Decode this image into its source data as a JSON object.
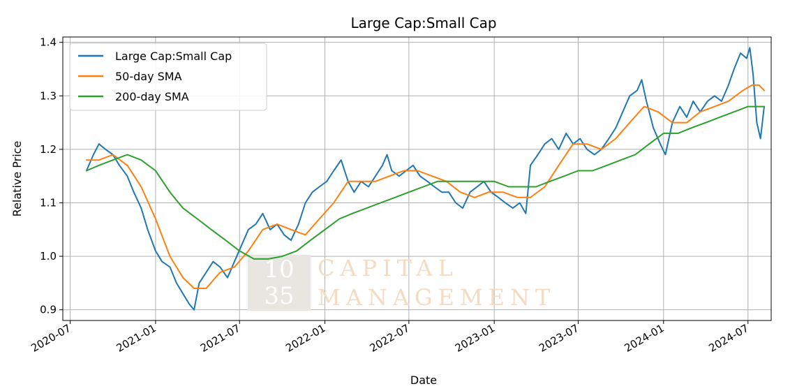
{
  "chart_data": {
    "type": "line",
    "title": "Large Cap:Small Cap",
    "xlabel": "Date",
    "ylabel": "Relative Price",
    "xlim": [
      "2020-06-15",
      "2024-08-20"
    ],
    "ylim": [
      0.88,
      1.41
    ],
    "x_ticks": [
      "2020-07",
      "2021-01",
      "2021-07",
      "2022-01",
      "2022-07",
      "2023-01",
      "2023-07",
      "2024-01",
      "2024-07"
    ],
    "y_ticks": [
      0.9,
      1.0,
      1.1,
      1.2,
      1.3,
      1.4
    ],
    "y_tick_labels": [
      "0.9",
      "1.0",
      "1.1",
      "1.2",
      "1.3",
      "1.4"
    ],
    "grid": true,
    "legend_position": "top-left",
    "series": [
      {
        "name": "Large Cap:Small Cap",
        "color": "#1f77b4",
        "points": [
          [
            "2020-08-05",
            1.16
          ],
          [
            "2020-08-20",
            1.19
          ],
          [
            "2020-09-01",
            1.21
          ],
          [
            "2020-09-15",
            1.2
          ],
          [
            "2020-10-01",
            1.19
          ],
          [
            "2020-10-15",
            1.17
          ],
          [
            "2020-11-01",
            1.15
          ],
          [
            "2020-11-15",
            1.12
          ],
          [
            "2020-12-01",
            1.09
          ],
          [
            "2020-12-15",
            1.05
          ],
          [
            "2021-01-01",
            1.01
          ],
          [
            "2021-01-15",
            0.99
          ],
          [
            "2021-02-01",
            0.98
          ],
          [
            "2021-02-15",
            0.95
          ],
          [
            "2021-03-01",
            0.93
          ],
          [
            "2021-03-15",
            0.91
          ],
          [
            "2021-03-25",
            0.9
          ],
          [
            "2021-04-05",
            0.95
          ],
          [
            "2021-04-20",
            0.97
          ],
          [
            "2021-05-05",
            0.99
          ],
          [
            "2021-05-20",
            0.98
          ],
          [
            "2021-06-05",
            0.96
          ],
          [
            "2021-06-20",
            0.99
          ],
          [
            "2021-07-05",
            1.02
          ],
          [
            "2021-07-20",
            1.05
          ],
          [
            "2021-08-05",
            1.06
          ],
          [
            "2021-08-20",
            1.08
          ],
          [
            "2021-09-05",
            1.05
          ],
          [
            "2021-09-20",
            1.06
          ],
          [
            "2021-10-05",
            1.04
          ],
          [
            "2021-10-20",
            1.03
          ],
          [
            "2021-11-05",
            1.06
          ],
          [
            "2021-11-20",
            1.1
          ],
          [
            "2021-12-05",
            1.12
          ],
          [
            "2021-12-20",
            1.13
          ],
          [
            "2022-01-05",
            1.14
          ],
          [
            "2022-01-20",
            1.16
          ],
          [
            "2022-02-05",
            1.18
          ],
          [
            "2022-02-20",
            1.14
          ],
          [
            "2022-03-05",
            1.12
          ],
          [
            "2022-03-20",
            1.14
          ],
          [
            "2022-04-05",
            1.13
          ],
          [
            "2022-04-20",
            1.15
          ],
          [
            "2022-05-05",
            1.17
          ],
          [
            "2022-05-15",
            1.19
          ],
          [
            "2022-05-25",
            1.16
          ],
          [
            "2022-06-10",
            1.15
          ],
          [
            "2022-06-25",
            1.16
          ],
          [
            "2022-07-10",
            1.17
          ],
          [
            "2022-07-25",
            1.15
          ],
          [
            "2022-08-10",
            1.14
          ],
          [
            "2022-08-25",
            1.13
          ],
          [
            "2022-09-10",
            1.12
          ],
          [
            "2022-09-25",
            1.12
          ],
          [
            "2022-10-10",
            1.1
          ],
          [
            "2022-10-25",
            1.09
          ],
          [
            "2022-11-10",
            1.12
          ],
          [
            "2022-11-25",
            1.13
          ],
          [
            "2022-12-10",
            1.14
          ],
          [
            "2022-12-25",
            1.12
          ],
          [
            "2023-01-10",
            1.11
          ],
          [
            "2023-01-25",
            1.1
          ],
          [
            "2023-02-10",
            1.09
          ],
          [
            "2023-02-25",
            1.1
          ],
          [
            "2023-03-10",
            1.08
          ],
          [
            "2023-03-20",
            1.17
          ],
          [
            "2023-04-05",
            1.19
          ],
          [
            "2023-04-20",
            1.21
          ],
          [
            "2023-05-05",
            1.22
          ],
          [
            "2023-05-20",
            1.2
          ],
          [
            "2023-06-05",
            1.23
          ],
          [
            "2023-06-20",
            1.21
          ],
          [
            "2023-07-05",
            1.22
          ],
          [
            "2023-07-20",
            1.2
          ],
          [
            "2023-08-05",
            1.19
          ],
          [
            "2023-08-20",
            1.2
          ],
          [
            "2023-09-05",
            1.22
          ],
          [
            "2023-09-20",
            1.24
          ],
          [
            "2023-10-05",
            1.27
          ],
          [
            "2023-10-20",
            1.3
          ],
          [
            "2023-11-05",
            1.31
          ],
          [
            "2023-11-15",
            1.33
          ],
          [
            "2023-11-25",
            1.29
          ],
          [
            "2023-12-10",
            1.24
          ],
          [
            "2023-12-25",
            1.21
          ],
          [
            "2024-01-05",
            1.19
          ],
          [
            "2024-01-20",
            1.25
          ],
          [
            "2024-02-05",
            1.28
          ],
          [
            "2024-02-20",
            1.26
          ],
          [
            "2024-03-05",
            1.29
          ],
          [
            "2024-03-20",
            1.27
          ],
          [
            "2024-04-05",
            1.29
          ],
          [
            "2024-04-20",
            1.3
          ],
          [
            "2024-05-05",
            1.29
          ],
          [
            "2024-05-20",
            1.32
          ],
          [
            "2024-06-01",
            1.35
          ],
          [
            "2024-06-15",
            1.38
          ],
          [
            "2024-06-28",
            1.37
          ],
          [
            "2024-07-05",
            1.39
          ],
          [
            "2024-07-12",
            1.34
          ],
          [
            "2024-07-20",
            1.25
          ],
          [
            "2024-07-28",
            1.22
          ],
          [
            "2024-08-05",
            1.28
          ]
        ]
      },
      {
        "name": "50-day SMA",
        "color": "#ff7f0e",
        "points": [
          [
            "2020-08-05",
            1.18
          ],
          [
            "2020-09-01",
            1.18
          ],
          [
            "2020-10-01",
            1.19
          ],
          [
            "2020-11-01",
            1.17
          ],
          [
            "2020-12-01",
            1.13
          ],
          [
            "2021-01-01",
            1.07
          ],
          [
            "2021-02-01",
            1.0
          ],
          [
            "2021-03-01",
            0.96
          ],
          [
            "2021-03-25",
            0.94
          ],
          [
            "2021-04-20",
            0.94
          ],
          [
            "2021-05-20",
            0.97
          ],
          [
            "2021-06-20",
            0.98
          ],
          [
            "2021-07-20",
            1.01
          ],
          [
            "2021-08-20",
            1.05
          ],
          [
            "2021-09-20",
            1.06
          ],
          [
            "2021-10-20",
            1.05
          ],
          [
            "2021-11-20",
            1.04
          ],
          [
            "2021-12-20",
            1.07
          ],
          [
            "2022-01-20",
            1.1
          ],
          [
            "2022-02-20",
            1.14
          ],
          [
            "2022-03-20",
            1.14
          ],
          [
            "2022-04-20",
            1.14
          ],
          [
            "2022-05-20",
            1.15
          ],
          [
            "2022-06-20",
            1.16
          ],
          [
            "2022-07-20",
            1.16
          ],
          [
            "2022-08-20",
            1.15
          ],
          [
            "2022-09-20",
            1.14
          ],
          [
            "2022-10-20",
            1.12
          ],
          [
            "2022-11-20",
            1.11
          ],
          [
            "2022-12-20",
            1.12
          ],
          [
            "2023-01-20",
            1.12
          ],
          [
            "2023-02-20",
            1.11
          ],
          [
            "2023-03-20",
            1.11
          ],
          [
            "2023-04-20",
            1.13
          ],
          [
            "2023-05-20",
            1.17
          ],
          [
            "2023-06-20",
            1.21
          ],
          [
            "2023-07-20",
            1.21
          ],
          [
            "2023-08-20",
            1.2
          ],
          [
            "2023-09-20",
            1.22
          ],
          [
            "2023-10-20",
            1.25
          ],
          [
            "2023-11-20",
            1.28
          ],
          [
            "2023-12-20",
            1.27
          ],
          [
            "2024-01-20",
            1.25
          ],
          [
            "2024-02-20",
            1.25
          ],
          [
            "2024-03-20",
            1.27
          ],
          [
            "2024-04-20",
            1.28
          ],
          [
            "2024-05-20",
            1.29
          ],
          [
            "2024-06-20",
            1.31
          ],
          [
            "2024-07-10",
            1.32
          ],
          [
            "2024-07-25",
            1.32
          ],
          [
            "2024-08-05",
            1.31
          ]
        ]
      },
      {
        "name": "200-day SMA",
        "color": "#2ca02c",
        "points": [
          [
            "2020-08-05",
            1.16
          ],
          [
            "2020-09-01",
            1.17
          ],
          [
            "2020-10-01",
            1.18
          ],
          [
            "2020-11-01",
            1.19
          ],
          [
            "2020-12-01",
            1.18
          ],
          [
            "2021-01-01",
            1.16
          ],
          [
            "2021-02-01",
            1.12
          ],
          [
            "2021-03-01",
            1.09
          ],
          [
            "2021-04-01",
            1.07
          ],
          [
            "2021-05-01",
            1.05
          ],
          [
            "2021-06-01",
            1.03
          ],
          [
            "2021-07-01",
            1.01
          ],
          [
            "2021-08-01",
            0.995
          ],
          [
            "2021-09-01",
            0.995
          ],
          [
            "2021-10-01",
            1.0
          ],
          [
            "2021-11-01",
            1.01
          ],
          [
            "2021-12-01",
            1.03
          ],
          [
            "2022-01-01",
            1.05
          ],
          [
            "2022-02-01",
            1.07
          ],
          [
            "2022-03-01",
            1.08
          ],
          [
            "2022-04-01",
            1.09
          ],
          [
            "2022-05-01",
            1.1
          ],
          [
            "2022-06-01",
            1.11
          ],
          [
            "2022-07-01",
            1.12
          ],
          [
            "2022-08-01",
            1.13
          ],
          [
            "2022-09-01",
            1.14
          ],
          [
            "2022-10-01",
            1.14
          ],
          [
            "2022-11-01",
            1.14
          ],
          [
            "2022-12-01",
            1.14
          ],
          [
            "2023-01-01",
            1.14
          ],
          [
            "2023-02-01",
            1.13
          ],
          [
            "2023-03-01",
            1.13
          ],
          [
            "2023-04-01",
            1.13
          ],
          [
            "2023-05-01",
            1.14
          ],
          [
            "2023-06-01",
            1.15
          ],
          [
            "2023-07-01",
            1.16
          ],
          [
            "2023-08-01",
            1.16
          ],
          [
            "2023-09-01",
            1.17
          ],
          [
            "2023-10-01",
            1.18
          ],
          [
            "2023-11-01",
            1.19
          ],
          [
            "2023-12-01",
            1.21
          ],
          [
            "2024-01-01",
            1.23
          ],
          [
            "2024-02-01",
            1.23
          ],
          [
            "2024-03-01",
            1.24
          ],
          [
            "2024-04-01",
            1.25
          ],
          [
            "2024-05-01",
            1.26
          ],
          [
            "2024-06-01",
            1.27
          ],
          [
            "2024-07-01",
            1.28
          ],
          [
            "2024-07-20",
            1.28
          ],
          [
            "2024-08-05",
            1.28
          ]
        ]
      }
    ]
  },
  "watermark": {
    "number_top": "10",
    "number_bottom": "35",
    "line1": "CAPITAL",
    "line2": "MANAGEMENT",
    "tile_color": "#e9e6e2",
    "text_color": "#f3dcc3"
  }
}
